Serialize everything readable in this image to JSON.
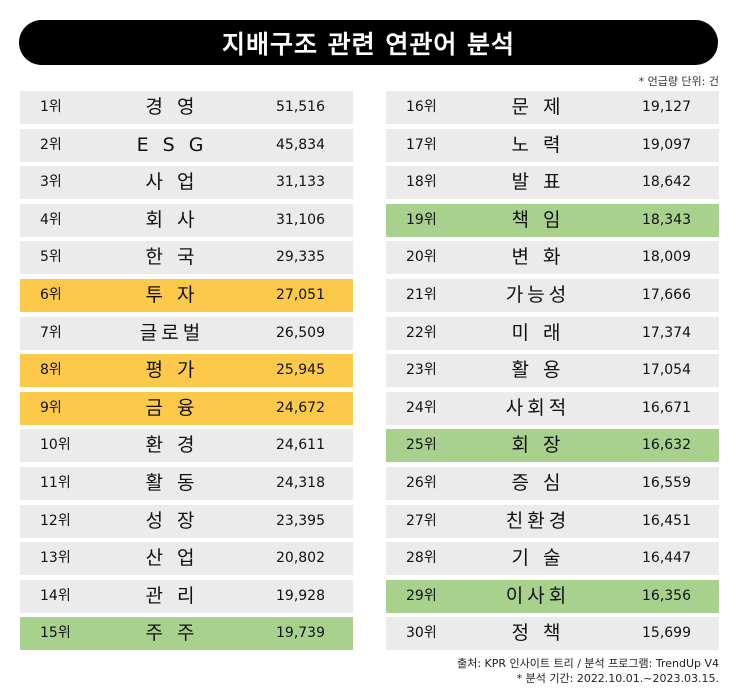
{
  "title": "지배구조 관련 연관어 분석",
  "unit_note": "* 언급량 단위: 건",
  "colors": {
    "highlight_yellow": "#fcc94a",
    "highlight_green": "#a9d18e",
    "row_default": "#ebebeb"
  },
  "left": [
    {
      "rank": "1위",
      "word": "경 영",
      "count": "51,516",
      "hl": ""
    },
    {
      "rank": "2위",
      "word": "E S G",
      "count": "45,834",
      "hl": ""
    },
    {
      "rank": "3위",
      "word": "사 업",
      "count": "31,133",
      "hl": ""
    },
    {
      "rank": "4위",
      "word": "회 사",
      "count": "31,106",
      "hl": ""
    },
    {
      "rank": "5위",
      "word": "한 국",
      "count": "29,335",
      "hl": ""
    },
    {
      "rank": "6위",
      "word": "투 자",
      "count": "27,051",
      "hl": "yellow"
    },
    {
      "rank": "7위",
      "word": "글로벌",
      "count": "26,509",
      "hl": ""
    },
    {
      "rank": "8위",
      "word": "평 가",
      "count": "25,945",
      "hl": "yellow"
    },
    {
      "rank": "9위",
      "word": "금 융",
      "count": "24,672",
      "hl": "yellow"
    },
    {
      "rank": "10위",
      "word": "환 경",
      "count": "24,611",
      "hl": ""
    },
    {
      "rank": "11위",
      "word": "활 동",
      "count": "24,318",
      "hl": ""
    },
    {
      "rank": "12위",
      "word": "성 장",
      "count": "23,395",
      "hl": ""
    },
    {
      "rank": "13위",
      "word": "산 업",
      "count": "20,802",
      "hl": ""
    },
    {
      "rank": "14위",
      "word": "관 리",
      "count": "19,928",
      "hl": ""
    },
    {
      "rank": "15위",
      "word": "주 주",
      "count": "19,739",
      "hl": "green"
    }
  ],
  "right": [
    {
      "rank": "16위",
      "word": "문 제",
      "count": "19,127",
      "hl": ""
    },
    {
      "rank": "17위",
      "word": "노 력",
      "count": "19,097",
      "hl": ""
    },
    {
      "rank": "18위",
      "word": "발 표",
      "count": "18,642",
      "hl": ""
    },
    {
      "rank": "19위",
      "word": "책 임",
      "count": "18,343",
      "hl": "green"
    },
    {
      "rank": "20위",
      "word": "변 화",
      "count": "18,009",
      "hl": ""
    },
    {
      "rank": "21위",
      "word": "가능성",
      "count": "17,666",
      "hl": ""
    },
    {
      "rank": "22위",
      "word": "미 래",
      "count": "17,374",
      "hl": ""
    },
    {
      "rank": "23위",
      "word": "활 용",
      "count": "17,054",
      "hl": ""
    },
    {
      "rank": "24위",
      "word": "사회적",
      "count": "16,671",
      "hl": ""
    },
    {
      "rank": "25위",
      "word": "회 장",
      "count": "16,632",
      "hl": "green"
    },
    {
      "rank": "26위",
      "word": "증 심",
      "count": "16,559",
      "hl": ""
    },
    {
      "rank": "27위",
      "word": "친환경",
      "count": "16,451",
      "hl": ""
    },
    {
      "rank": "28위",
      "word": "기 술",
      "count": "16,447",
      "hl": ""
    },
    {
      "rank": "29위",
      "word": "이사회",
      "count": "16,356",
      "hl": "green"
    },
    {
      "rank": "30위",
      "word": "정 책",
      "count": "15,699",
      "hl": ""
    }
  ],
  "footer": {
    "source": "출처: KPR 인사이트 트리 / 분석 프로그램: TrendUp V4",
    "period": "* 분석 기간: 2022.10.01.~2023.03.15."
  }
}
